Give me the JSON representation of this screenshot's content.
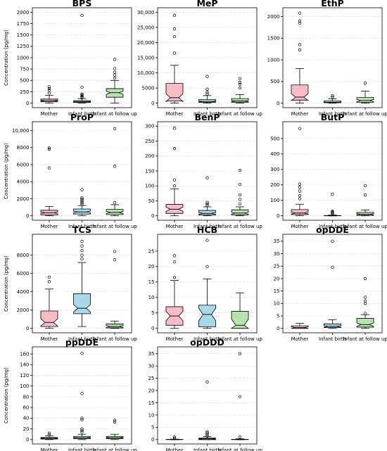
{
  "colors": {
    "Mother": "#f7bcc6",
    "Infant birth": "#a9d9e8",
    "Infant at follow up": "#b6e3b0"
  },
  "ylabel": "Concentration (pg/mg)",
  "chart_data": [
    {
      "type": "box",
      "title": "BPS",
      "categories": [
        "Mother",
        "Infant birth",
        "Infant at follow up"
      ],
      "ylim": [
        0,
        2000
      ],
      "yticks": [
        0,
        250,
        500,
        750,
        1000,
        1250,
        1500,
        1750,
        2000
      ],
      "ytick_labels": [
        "0",
        "250",
        "500",
        "750",
        "1000",
        "1250",
        "1500",
        "1750",
        "2000"
      ],
      "ylabel": "Concentration (pg/mg)",
      "boxes": [
        {
          "whislo": 0,
          "q1": 30,
          "med": 55,
          "q3": 90,
          "whishi": 170,
          "notch": [
            45,
            65
          ],
          "fliers": [
            220,
            280,
            320,
            360
          ]
        },
        {
          "whislo": 0,
          "q1": 15,
          "med": 30,
          "q3": 55,
          "whishi": 100,
          "notch": [
            25,
            35
          ],
          "fliers": [
            120,
            140,
            160,
            180,
            200,
            350,
            1930
          ]
        },
        {
          "whislo": 0,
          "q1": 130,
          "med": 230,
          "q3": 320,
          "whishi": 500,
          "notch": [
            195,
            265
          ],
          "fliers": [
            550,
            620,
            680,
            760,
            960
          ]
        }
      ]
    },
    {
      "type": "box",
      "title": "MeP",
      "categories": [
        "Mother",
        "Infant birth",
        "Infant at follow up"
      ],
      "ylim": [
        0,
        30000
      ],
      "yticks": [
        0,
        5000,
        10000,
        15000,
        20000,
        25000,
        30000
      ],
      "ytick_labels": [
        "0",
        "5000",
        "10,000",
        "15,000",
        "20,000",
        "25,000",
        "30,000"
      ],
      "ylabel": "",
      "boxes": [
        {
          "whislo": 0,
          "q1": 700,
          "med": 1800,
          "q3": 6500,
          "whishi": 12500,
          "notch": [
            500,
            3100
          ],
          "fliers": [
            16500,
            22000,
            24500,
            29000
          ]
        },
        {
          "whislo": 0,
          "q1": 250,
          "med": 550,
          "q3": 1150,
          "whishi": 2500,
          "notch": [
            400,
            700
          ],
          "fliers": [
            3000,
            3600,
            4600,
            8800
          ]
        },
        {
          "whislo": 0,
          "q1": 300,
          "med": 700,
          "q3": 1500,
          "whishi": 2800,
          "notch": [
            500,
            900
          ],
          "fliers": [
            5000,
            6200,
            6800,
            8100
          ]
        }
      ]
    },
    {
      "type": "box",
      "title": "EthP",
      "categories": [
        "Mother",
        "Infant birth",
        "Infant at follow up"
      ],
      "ylim": [
        0,
        2100
      ],
      "yticks": [
        0,
        500,
        1000,
        1500,
        2000
      ],
      "ytick_labels": [
        "0",
        "500",
        "1000",
        "1500",
        "2000"
      ],
      "ylabel": "",
      "boxes": [
        {
          "whislo": 0,
          "q1": 70,
          "med": 140,
          "q3": 420,
          "whishi": 800,
          "notch": [
            60,
            220
          ],
          "fliers": [
            1230,
            1350,
            1850,
            1900,
            2080
          ]
        },
        {
          "whislo": 0,
          "q1": 10,
          "med": 20,
          "q3": 50,
          "whishi": 100,
          "notch": [
            15,
            25
          ],
          "fliers": [
            140,
            170
          ]
        },
        {
          "whislo": 0,
          "q1": 20,
          "med": 60,
          "q3": 130,
          "whishi": 280,
          "notch": [
            35,
            85
          ],
          "fliers": [
            460
          ]
        }
      ]
    },
    {
      "type": "box",
      "title": "ProP",
      "categories": [
        "Mother",
        "Infant birth",
        "Infant at follow up"
      ],
      "ylim": [
        0,
        10500
      ],
      "yticks": [
        0,
        2000,
        4000,
        6000,
        8000,
        10000
      ],
      "ytick_labels": [
        "0",
        "2000",
        "4000",
        "6000",
        "8000",
        "10,000"
      ],
      "ylabel": "Concentration (pg/mg)",
      "boxes": [
        {
          "whislo": 0,
          "q1": 100,
          "med": 350,
          "q3": 650,
          "whishi": 1100,
          "notch": [
            250,
            450
          ],
          "fliers": [
            5600,
            7800,
            7950
          ]
        },
        {
          "whislo": 0,
          "q1": 200,
          "med": 450,
          "q3": 800,
          "whishi": 1200,
          "notch": [
            350,
            550
          ],
          "fliers": [
            1350,
            1500,
            1650,
            1800,
            1950,
            2100,
            3050
          ]
        },
        {
          "whislo": 0,
          "q1": 150,
          "med": 400,
          "q3": 750,
          "whishi": 1300,
          "notch": [
            280,
            520
          ],
          "fliers": [
            1550,
            5800,
            10200
          ]
        }
      ]
    },
    {
      "type": "box",
      "title": "BenP",
      "categories": [
        "Mother",
        "Infant birth",
        "Infant at follow up"
      ],
      "ylim": [
        0,
        300
      ],
      "yticks": [
        0,
        50,
        100,
        150,
        200,
        250,
        300
      ],
      "ytick_labels": [
        "0",
        "50",
        "100",
        "150",
        "200",
        "250",
        "300"
      ],
      "ylabel": "",
      "boxes": [
        {
          "whislo": 0,
          "q1": 8,
          "med": 22,
          "q3": 38,
          "whishi": 90,
          "notch": [
            15,
            29
          ],
          "fliers": [
            100,
            120,
            225,
            293
          ]
        },
        {
          "whislo": 0,
          "q1": 3,
          "med": 8,
          "q3": 18,
          "whishi": 30,
          "notch": [
            5,
            11
          ],
          "fliers": [
            35,
            40,
            45,
            127
          ]
        },
        {
          "whislo": 0,
          "q1": 3,
          "med": 9,
          "q3": 20,
          "whishi": 30,
          "notch": [
            6,
            12
          ],
          "fliers": [
            40,
            55,
            70,
            105,
            152
          ]
        }
      ]
    },
    {
      "type": "box",
      "title": "ButP",
      "categories": [
        "Mother",
        "Infant birth",
        "Infant at follow up"
      ],
      "ylim": [
        0,
        580
      ],
      "yticks": [
        0,
        100,
        200,
        300,
        400,
        500
      ],
      "ytick_labels": [
        "0",
        "100",
        "200",
        "300",
        "400",
        "500"
      ],
      "ylabel": "",
      "boxes": [
        {
          "whislo": 0,
          "q1": 8,
          "med": 18,
          "q3": 40,
          "whishi": 75,
          "notch": [
            12,
            24
          ],
          "fliers": [
            110,
            130,
            160,
            185,
            205,
            565
          ]
        },
        {
          "whislo": 0,
          "q1": 0,
          "med": 0,
          "q3": 2,
          "whishi": 5,
          "notch": [
            0,
            1
          ],
          "fliers": [
            15,
            20,
            25,
            30,
            140
          ]
        },
        {
          "whislo": 0,
          "q1": 3,
          "med": 10,
          "q3": 22,
          "whishi": 38,
          "notch": [
            6,
            14
          ],
          "fliers": [
            135,
            195
          ]
        }
      ]
    },
    {
      "type": "box",
      "title": "TCS",
      "categories": [
        "Mother",
        "Infant birth",
        "Infant at follow up"
      ],
      "ylim": [
        0,
        9800
      ],
      "yticks": [
        0,
        2000,
        4000,
        6000,
        8000
      ],
      "ytick_labels": [
        "0",
        "2000",
        "4000",
        "6000",
        "8000"
      ],
      "ylabel": "Concentration (pg/mg)",
      "boxes": [
        {
          "whislo": 0,
          "q1": 200,
          "med": 650,
          "q3": 1900,
          "whishi": 4300,
          "notch": [
            250,
            1050
          ],
          "fliers": [
            5100,
            5600
          ]
        },
        {
          "whislo": 200,
          "q1": 1600,
          "med": 2200,
          "q3": 3800,
          "whishi": 7200,
          "notch": [
            1800,
            2600
          ],
          "fliers": [
            7600,
            8000,
            8500,
            9000,
            9500
          ]
        },
        {
          "whislo": 0,
          "q1": 50,
          "med": 200,
          "q3": 480,
          "whishi": 800,
          "notch": [
            100,
            300
          ],
          "fliers": [
            7500,
            8400
          ]
        }
      ]
    },
    {
      "type": "box",
      "title": "HCB",
      "categories": [
        "Mother",
        "Infant birth",
        "Infant at follow up"
      ],
      "ylim": [
        0,
        29
      ],
      "yticks": [
        0,
        5,
        10,
        15,
        20,
        25
      ],
      "ytick_labels": [
        "0",
        "5",
        "10",
        "15",
        "20",
        "25"
      ],
      "ylabel": "",
      "boxes": [
        {
          "whislo": 0,
          "q1": 1,
          "med": 4,
          "q3": 7,
          "whishi": 15.5,
          "notch": [
            2.5,
            5.5
          ],
          "fliers": [
            16.5,
            21.5,
            23.5
          ]
        },
        {
          "whislo": 0,
          "q1": 0.5,
          "med": 4.5,
          "q3": 7.5,
          "whishi": 16,
          "notch": [
            2.5,
            6.5
          ],
          "fliers": [
            20,
            28.5
          ]
        },
        {
          "whislo": 0,
          "q1": 0,
          "med": 1,
          "q3": 5.5,
          "whishi": 11.5,
          "notch": [
            0,
            3
          ],
          "fliers": []
        }
      ]
    },
    {
      "type": "box",
      "title": "opDDE",
      "categories": [
        "Mother",
        "Infant birth",
        "Infant at follow up"
      ],
      "ylim": [
        0,
        36
      ],
      "yticks": [
        0,
        5,
        10,
        15,
        20,
        25,
        30,
        35
      ],
      "ytick_labels": [
        "0",
        "5",
        "10",
        "15",
        "20",
        "25",
        "30",
        "35"
      ],
      "ylabel": "",
      "boxes": [
        {
          "whislo": 0,
          "q1": 0,
          "med": 0.3,
          "q3": 1,
          "whishi": 2,
          "notch": [
            0,
            0.6
          ],
          "fliers": []
        },
        {
          "whislo": 0,
          "q1": 0.3,
          "med": 0.8,
          "q3": 1.8,
          "whishi": 3.5,
          "notch": [
            0.5,
            1.1
          ],
          "fliers": [
            24.5,
            35
          ]
        },
        {
          "whislo": 0,
          "q1": 0.5,
          "med": 1.5,
          "q3": 4,
          "whishi": 5.5,
          "notch": [
            0.8,
            2.2
          ],
          "fliers": [
            6,
            10,
            11,
            12.5,
            20
          ]
        }
      ]
    },
    {
      "type": "box",
      "title": "ppDDE",
      "categories": [
        "Mother",
        "Infant birth",
        "Infant at follow up"
      ],
      "ylim": [
        0,
        165
      ],
      "yticks": [
        0,
        20,
        40,
        60,
        80,
        100,
        120,
        140,
        160
      ],
      "ytick_labels": [
        "0",
        "20",
        "40",
        "60",
        "80",
        "100",
        "120",
        "140",
        "160"
      ],
      "ylabel": "Concentration (pg/mg)",
      "boxes": [
        {
          "whislo": 0,
          "q1": 1,
          "med": 2.5,
          "q3": 4,
          "whishi": 7,
          "notch": [
            1.8,
            3.2
          ],
          "fliers": [
            9,
            12
          ]
        },
        {
          "whislo": 0,
          "q1": 1.5,
          "med": 3.5,
          "q3": 6,
          "whishi": 10,
          "notch": [
            2.5,
            4.5
          ],
          "fliers": [
            14,
            17,
            20,
            37,
            40,
            86,
            161
          ]
        },
        {
          "whislo": 0,
          "q1": 1.5,
          "med": 3.5,
          "q3": 6,
          "whishi": 10,
          "notch": [
            2.5,
            4.5
          ],
          "fliers": [
            33,
            36
          ]
        }
      ]
    },
    {
      "type": "box",
      "title": "opDDD",
      "categories": [
        "Mother",
        "Infant birth",
        "Infant at follow up"
      ],
      "ylim": [
        0,
        36
      ],
      "yticks": [
        0,
        5,
        10,
        15,
        20,
        25,
        30,
        35
      ],
      "ytick_labels": [
        "0",
        "5",
        "10",
        "15",
        "20",
        "25",
        "30",
        "35"
      ],
      "ylabel": "",
      "boxes": [
        {
          "whislo": 0,
          "q1": 0,
          "med": 0,
          "q3": 0.1,
          "whishi": 0.2,
          "notch": [
            0,
            0.05
          ],
          "fliers": [
            0.5,
            1
          ]
        },
        {
          "whislo": 0,
          "q1": 0,
          "med": 0.3,
          "q3": 0.6,
          "whishi": 1.2,
          "notch": [
            0.15,
            0.45
          ],
          "fliers": [
            1.5,
            2.1,
            2.7,
            3.2,
            23.5
          ]
        },
        {
          "whislo": 0,
          "q1": 0,
          "med": 0,
          "q3": 0.1,
          "whishi": 0.3,
          "notch": [
            0,
            0.05
          ],
          "fliers": [
            1,
            17.5,
            35
          ]
        }
      ]
    }
  ]
}
